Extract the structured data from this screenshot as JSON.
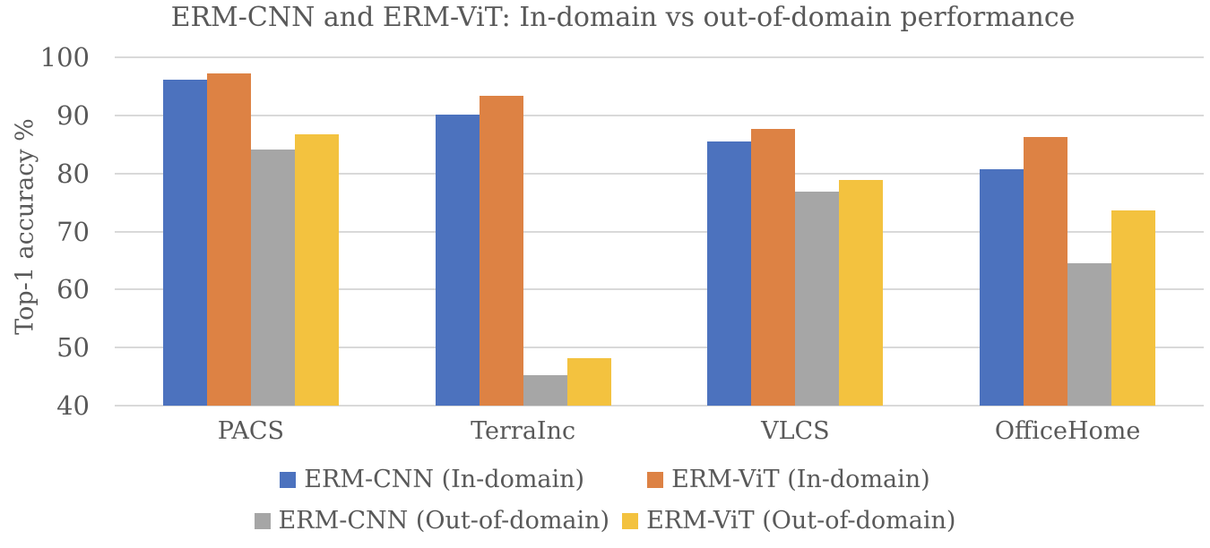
{
  "chart_data": {
    "type": "bar",
    "title": "ERM-CNN and ERM-ViT: In-domain vs out-of-domain performance",
    "ylabel": "Top-1 accuracy %",
    "xlabel": "",
    "categories": [
      "PACS",
      "TerraInc",
      "VLCS",
      "OfficeHome"
    ],
    "series": [
      {
        "name": "ERM-CNN (In-domain)",
        "color": "#4C72BE",
        "values": [
          96.2,
          90.2,
          85.5,
          80.7
        ]
      },
      {
        "name": "ERM-ViT (In-domain)",
        "color": "#DD8244",
        "values": [
          97.3,
          93.3,
          87.7,
          86.2
        ]
      },
      {
        "name": "ERM-CNN (Out-of-domain)",
        "color": "#A6A6A6",
        "values": [
          84.1,
          45.2,
          76.9,
          64.6
        ]
      },
      {
        "name": "ERM-ViT (Out-of-domain)",
        "color": "#F3C23F",
        "values": [
          86.7,
          48.1,
          78.9,
          73.7
        ]
      }
    ],
    "ylim": [
      40,
      100
    ],
    "yticks": [
      40,
      50,
      60,
      70,
      80,
      90,
      100
    ],
    "grid": true,
    "legend_position": "bottom",
    "legend_rows": [
      [
        "ERM-CNN (In-domain)",
        "ERM-ViT (In-domain)"
      ],
      [
        "ERM-CNN (Out-of-domain)",
        "ERM-ViT (Out-of-domain)"
      ]
    ],
    "colors": {
      "text": "#595959",
      "gridline": "#D9D9D9",
      "background": "#FFFFFF"
    }
  }
}
